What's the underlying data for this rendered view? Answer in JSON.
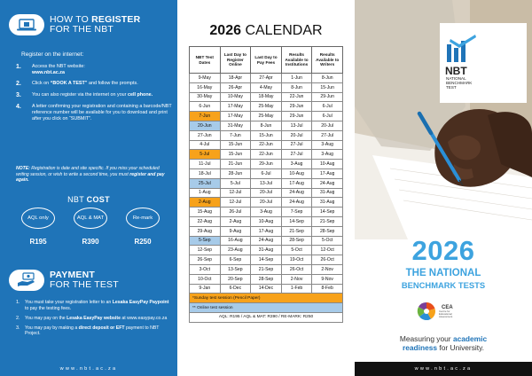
{
  "left": {
    "register": {
      "title_plain": "HOW TO ",
      "title_bold": "REGISTER",
      "title_line2": "FOR THE NBT",
      "intro": "Register on the internet:",
      "steps": [
        {
          "num": "1.",
          "line1": "Access the NBT website:",
          "bold": "www.nbt.ac.za"
        },
        {
          "num": "2.",
          "pre": "Click on ",
          "bold": "“BOOK A TEST”",
          "post": " and follow the prompts."
        },
        {
          "num": "3.",
          "pre": "You can also register via the internet on your ",
          "bold": "cell phone."
        },
        {
          "num": "4.",
          "text": "A letter confirming your registration and containing a barcode/NBT reference number will be available for you to download and print after you click on “SUBMIT”."
        }
      ],
      "note_label": "NOTE:",
      "note_text": " Registration is date and site specific. If you miss your scheduled writing session, or wish to write a second time, you must ",
      "note_bold": "register and pay again."
    },
    "cost": {
      "title_plain": "NBT ",
      "title_bold": "COST",
      "items": [
        {
          "label": "AQL only",
          "price": "R195"
        },
        {
          "label": "AQL & MAT",
          "price": "R390"
        },
        {
          "label": "Re-mark",
          "price": "R250"
        }
      ]
    },
    "payment": {
      "title": "PAYMENT",
      "title_line2": "FOR THE TEST",
      "steps": [
        {
          "num": "1.",
          "pre": "You must take your registration letter to an ",
          "bold": "Lesaka EasyPay Paypoint",
          "post": " to pay the testing fees."
        },
        {
          "num": "2.",
          "pre": "You may pay on the ",
          "bold": "Lesaka EasyPay website",
          "post": " at www.easypay.co.za"
        },
        {
          "num": "3.",
          "pre": "You may pay by making a ",
          "bold": "direct deposit or EFT",
          "post": " payment to NBT Project."
        }
      ]
    },
    "url": "www.nbt.ac.za"
  },
  "calendar": {
    "title_year": "2026",
    "title_word": " CALENDAR",
    "headers": [
      "NBT Test Dates",
      "Last Day to Register Online",
      "Last Day to Pay Fees",
      "Results Available to Institutions",
      "Results Available to Writers"
    ],
    "rows": [
      {
        "hl": "",
        "cells": [
          "9-May",
          "18-Apr",
          "27-Apr",
          "1-Jun",
          "8-Jun"
        ]
      },
      {
        "hl": "",
        "cells": [
          "16-May",
          "26-Apr",
          "4-May",
          "8-Jun",
          "15-Jun"
        ]
      },
      {
        "hl": "",
        "cells": [
          "30-May",
          "10-May",
          "18-May",
          "22-Jun",
          "29-Jun"
        ]
      },
      {
        "hl": "",
        "cells": [
          "6-Jun",
          "17-May",
          "25-May",
          "29-Jun",
          "6-Jul"
        ]
      },
      {
        "hl": "orange",
        "cells": [
          "7-Jun",
          "17-May",
          "25-May",
          "29-Jun",
          "6-Jul"
        ]
      },
      {
        "hl": "blue",
        "cells": [
          "20-Jun",
          "31-May",
          "8-Jun",
          "13-Jul",
          "20-Jul"
        ]
      },
      {
        "hl": "",
        "cells": [
          "27-Jun",
          "7-Jun",
          "15-Jun",
          "20-Jul",
          "27-Jul"
        ]
      },
      {
        "hl": "",
        "cells": [
          "4-Jul",
          "15-Jun",
          "22-Jun",
          "27-Jul",
          "3-Aug"
        ]
      },
      {
        "hl": "orange",
        "cells": [
          "5-Jul",
          "15-Jun",
          "22-Jun",
          "27-Jul",
          "3-Aug"
        ]
      },
      {
        "hl": "",
        "cells": [
          "11-Jul",
          "21-Jun",
          "29-Jun",
          "3-Aug",
          "10-Aug"
        ]
      },
      {
        "hl": "",
        "cells": [
          "18-Jul",
          "28-Jun",
          "6-Jul",
          "10-Aug",
          "17-Aug"
        ]
      },
      {
        "hl": "blue",
        "cells": [
          "25-Jul",
          "5-Jul",
          "13-Jul",
          "17-Aug",
          "24-Aug"
        ]
      },
      {
        "hl": "",
        "cells": [
          "1-Aug",
          "12-Jul",
          "20-Jul",
          "24-Aug",
          "31-Aug"
        ]
      },
      {
        "hl": "orange",
        "cells": [
          "2-Aug",
          "12-Jul",
          "20-Jul",
          "24-Aug",
          "31-Aug"
        ]
      },
      {
        "hl": "",
        "cells": [
          "15-Aug",
          "26-Jul",
          "3-Aug",
          "7-Sep",
          "14-Sep"
        ]
      },
      {
        "hl": "",
        "cells": [
          "22-Aug",
          "2-Aug",
          "10-Aug",
          "14-Sep",
          "21-Sep"
        ]
      },
      {
        "hl": "",
        "cells": [
          "29-Aug",
          "9-Aug",
          "17-Aug",
          "21-Sep",
          "28-Sep"
        ]
      },
      {
        "hl": "blue",
        "cells": [
          "5-Sep",
          "16-Aug",
          "24-Aug",
          "28-Sep",
          "5-Oct"
        ]
      },
      {
        "hl": "",
        "cells": [
          "12-Sep",
          "23-Aug",
          "31-Aug",
          "5-Oct",
          "12-Oct"
        ]
      },
      {
        "hl": "",
        "cells": [
          "26-Sep",
          "6-Sep",
          "14-Sep",
          "19-Oct",
          "26-Oct"
        ]
      },
      {
        "hl": "",
        "cells": [
          "3-Oct",
          "13-Sep",
          "21-Sep",
          "26-Oct",
          "2-Nov"
        ]
      },
      {
        "hl": "",
        "cells": [
          "10-Oct",
          "20-Sep",
          "28-Sep",
          "2-Nov",
          "9-Nov"
        ]
      },
      {
        "hl": "",
        "cells": [
          "9-Jan",
          "6-Dec",
          "14-Dec",
          "1-Feb",
          "8-Feb"
        ]
      }
    ],
    "legend_sunday": "*Sunday test session (Pencil Paper)",
    "legend_online": "** Online test session",
    "fees_line": "AQL: R195 / AQL & MAT: R390 / RE-MARK: R250"
  },
  "right": {
    "logo_letters": "NBT",
    "logo_words": [
      "NATIONAL",
      "BENCHMARK",
      "TEST"
    ],
    "year": "2026",
    "line1": "THE NATIONAL",
    "line2": "BENCHMARK TESTS",
    "cea_name": "CEA",
    "cea_sub": [
      "Centre for",
      "Educational",
      "Assessment"
    ],
    "tag_pre": "Measuring your ",
    "tag_bold1": "academic",
    "tag_bold2": "readiness",
    "tag_post": " for University.",
    "url": "www.nbt.ac.za"
  },
  "colors": {
    "left_bg": "#1f74b8",
    "accent_blue": "#3da3df",
    "sunday_orange": "#f7a21b",
    "online_blue": "#a7cbe9"
  }
}
